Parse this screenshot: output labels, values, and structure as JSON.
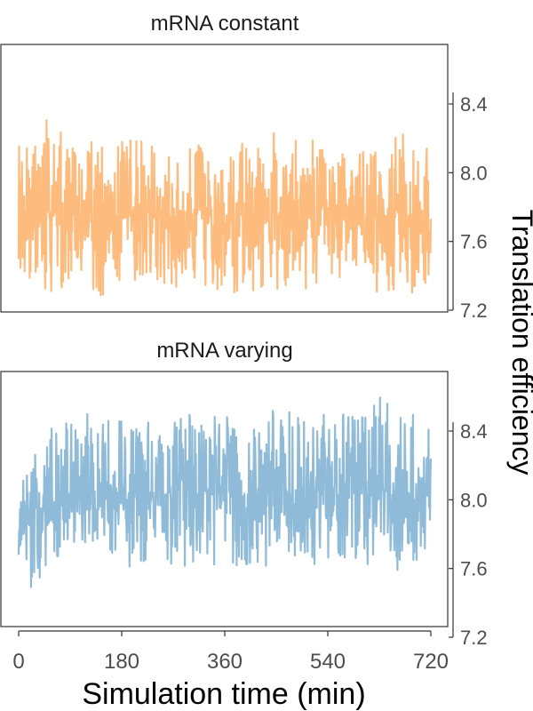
{
  "figure": {
    "xlabel": "Simulation time (min)",
    "ylabel": "Translation efficiency"
  },
  "chart_data": [
    {
      "type": "line",
      "title": "mRNA constant",
      "color": "#fdbb7d",
      "xlim": [
        0,
        720
      ],
      "ylim": [
        7.2,
        8.6
      ],
      "x_ticks": [
        0,
        180,
        360,
        540,
        720
      ],
      "y_ticks": [
        7.2,
        7.6,
        8.0,
        8.4
      ],
      "x_tick_labels": [
        "0",
        "180",
        "360",
        "540",
        "720"
      ],
      "y_tick_labels": [
        "7.2",
        "7.6",
        "8.0",
        "8.4"
      ],
      "series": [
        {
          "x": [
            0,
            30,
            60,
            90,
            120,
            150,
            180,
            210,
            240,
            270,
            300,
            330,
            360,
            390,
            420,
            450,
            480,
            510,
            540,
            570,
            600,
            630,
            660,
            690,
            720
          ],
          "y": [
            7.8,
            7.75,
            7.78,
            7.76,
            7.74,
            7.77,
            7.75,
            7.76,
            7.78,
            7.74,
            7.76,
            7.77,
            7.75,
            7.76,
            7.78,
            7.75,
            7.77,
            7.74,
            7.76,
            7.75,
            7.77,
            7.76,
            7.74,
            7.76,
            7.75
          ],
          "y_min": [
            7.45,
            7.35,
            7.3,
            7.35,
            7.32,
            7.25,
            7.35,
            7.3,
            7.35,
            7.32,
            7.3,
            7.35,
            7.3,
            7.3,
            7.32,
            7.3,
            7.35,
            7.3,
            7.32,
            7.3,
            7.35,
            7.3,
            7.32,
            7.3,
            7.3
          ],
          "y_max": [
            8.2,
            8.18,
            8.4,
            8.2,
            8.22,
            8.25,
            8.18,
            8.2,
            8.22,
            8.18,
            8.2,
            8.18,
            8.22,
            8.2,
            8.18,
            8.25,
            8.2,
            8.22,
            8.18,
            8.2,
            8.2,
            8.18,
            8.3,
            8.2,
            8.15
          ]
        }
      ]
    },
    {
      "type": "line",
      "title": "mRNA varying",
      "color": "#8fbbd9",
      "xlim": [
        0,
        720
      ],
      "ylim": [
        7.2,
        8.9
      ],
      "x_ticks": [
        0,
        180,
        360,
        540,
        720
      ],
      "y_ticks": [
        7.2,
        7.6,
        8.0,
        8.4
      ],
      "x_tick_labels": [
        "0",
        "180",
        "360",
        "540",
        "720"
      ],
      "y_tick_labels": [
        "7.2",
        "7.6",
        "8.0",
        "8.4"
      ],
      "series": [
        {
          "x": [
            0,
            30,
            60,
            90,
            120,
            150,
            180,
            210,
            240,
            270,
            300,
            330,
            360,
            390,
            420,
            450,
            480,
            510,
            540,
            570,
            600,
            630,
            660,
            690,
            720
          ],
          "y": [
            7.8,
            7.9,
            7.98,
            8.0,
            8.02,
            8.01,
            8.03,
            8.02,
            8.04,
            8.03,
            8.02,
            8.04,
            8.03,
            8.02,
            8.04,
            8.03,
            8.05,
            8.03,
            8.04,
            8.03,
            8.04,
            8.03,
            8.04,
            8.03,
            8.03
          ],
          "y_min": [
            7.38,
            7.5,
            7.65,
            7.65,
            7.65,
            7.65,
            7.62,
            7.6,
            7.65,
            7.62,
            7.6,
            7.62,
            7.6,
            7.62,
            7.6,
            7.62,
            7.6,
            7.62,
            7.6,
            7.62,
            7.6,
            7.62,
            7.58,
            7.6,
            7.6
          ],
          "y_max": [
            8.15,
            8.3,
            8.45,
            8.45,
            8.5,
            8.5,
            8.5,
            8.5,
            8.48,
            8.55,
            8.5,
            8.5,
            8.48,
            8.5,
            8.5,
            8.55,
            8.5,
            8.48,
            8.55,
            8.5,
            8.5,
            8.65,
            8.55,
            8.5,
            8.4
          ]
        }
      ]
    }
  ]
}
